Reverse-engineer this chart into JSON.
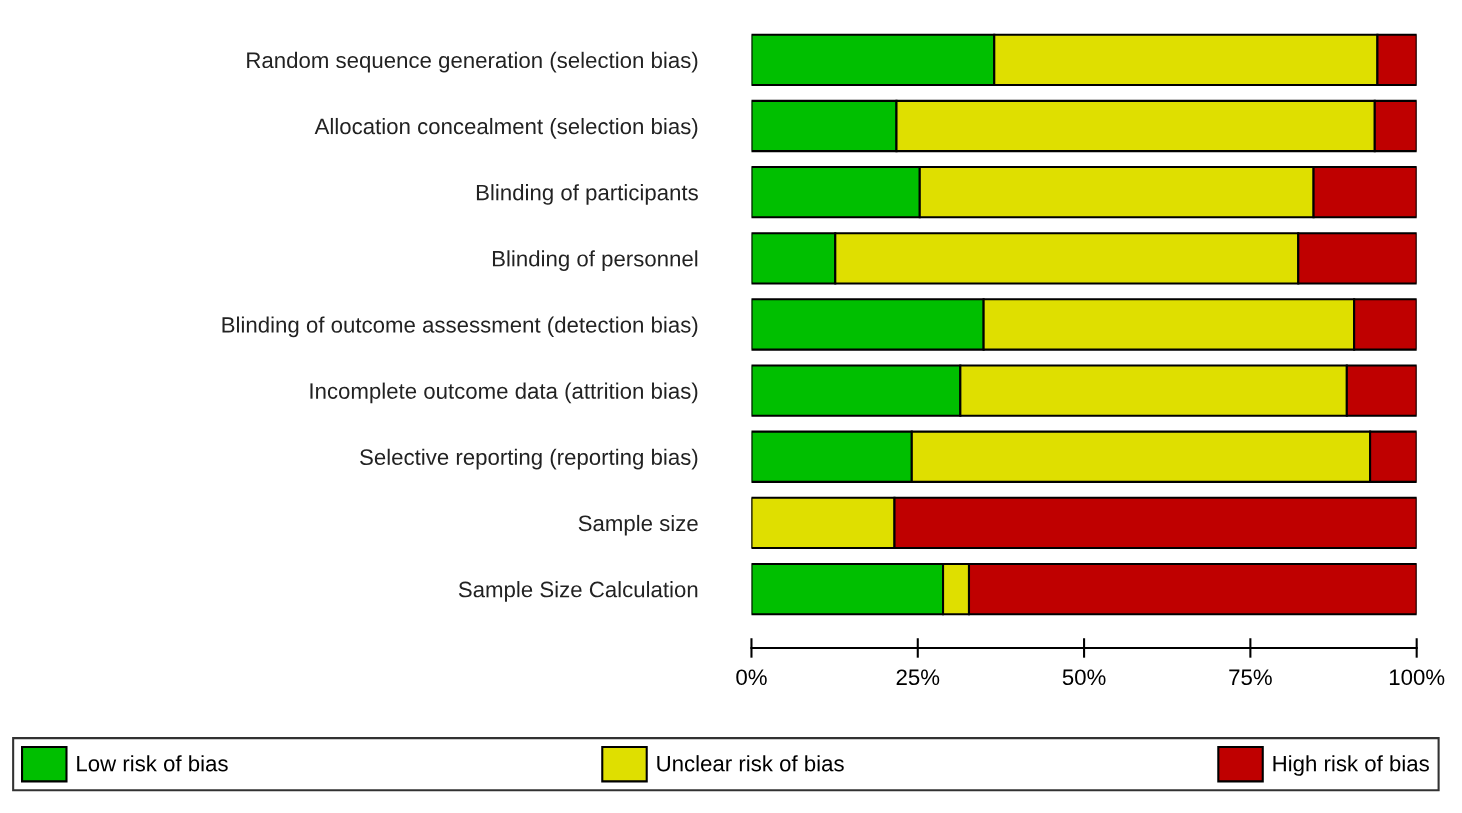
{
  "chart_data": {
    "type": "bar",
    "orientation": "horizontal",
    "stacked": true,
    "categories": [
      "Random sequence generation (selection bias)",
      "Allocation concealment (selection bias)",
      "Blinding of participants",
      "Blinding of personnel",
      "Blinding of outcome assessment (detection bias)",
      "Incomplete outcome data (attrition bias)",
      "Selective reporting (reporting bias)",
      "Sample size",
      "Sample Size Calculation"
    ],
    "series": [
      {
        "name": "Low risk of bias",
        "color": "#00bf00",
        "values": [
          36.5,
          21.8,
          25.3,
          12.6,
          34.9,
          31.4,
          24.1,
          0,
          28.8
        ]
      },
      {
        "name": "Unclear risk of bias",
        "color": "#dfdf00",
        "values": [
          57.6,
          71.9,
          59.2,
          69.6,
          55.7,
          58.1,
          68.9,
          21.5,
          3.9
        ]
      },
      {
        "name": "High risk of bias",
        "color": "#bf0000",
        "values": [
          5.9,
          6.3,
          15.5,
          17.8,
          9.4,
          10.5,
          7.0,
          78.5,
          67.3
        ]
      }
    ],
    "xlim": [
      0,
      100
    ],
    "xticks": [
      {
        "value": 0,
        "label": "0%"
      },
      {
        "value": 25,
        "label": "25%"
      },
      {
        "value": 50,
        "label": "50%"
      },
      {
        "value": 75,
        "label": "75%"
      },
      {
        "value": 100,
        "label": "100%"
      }
    ],
    "grid": false,
    "legend": "bottom"
  }
}
